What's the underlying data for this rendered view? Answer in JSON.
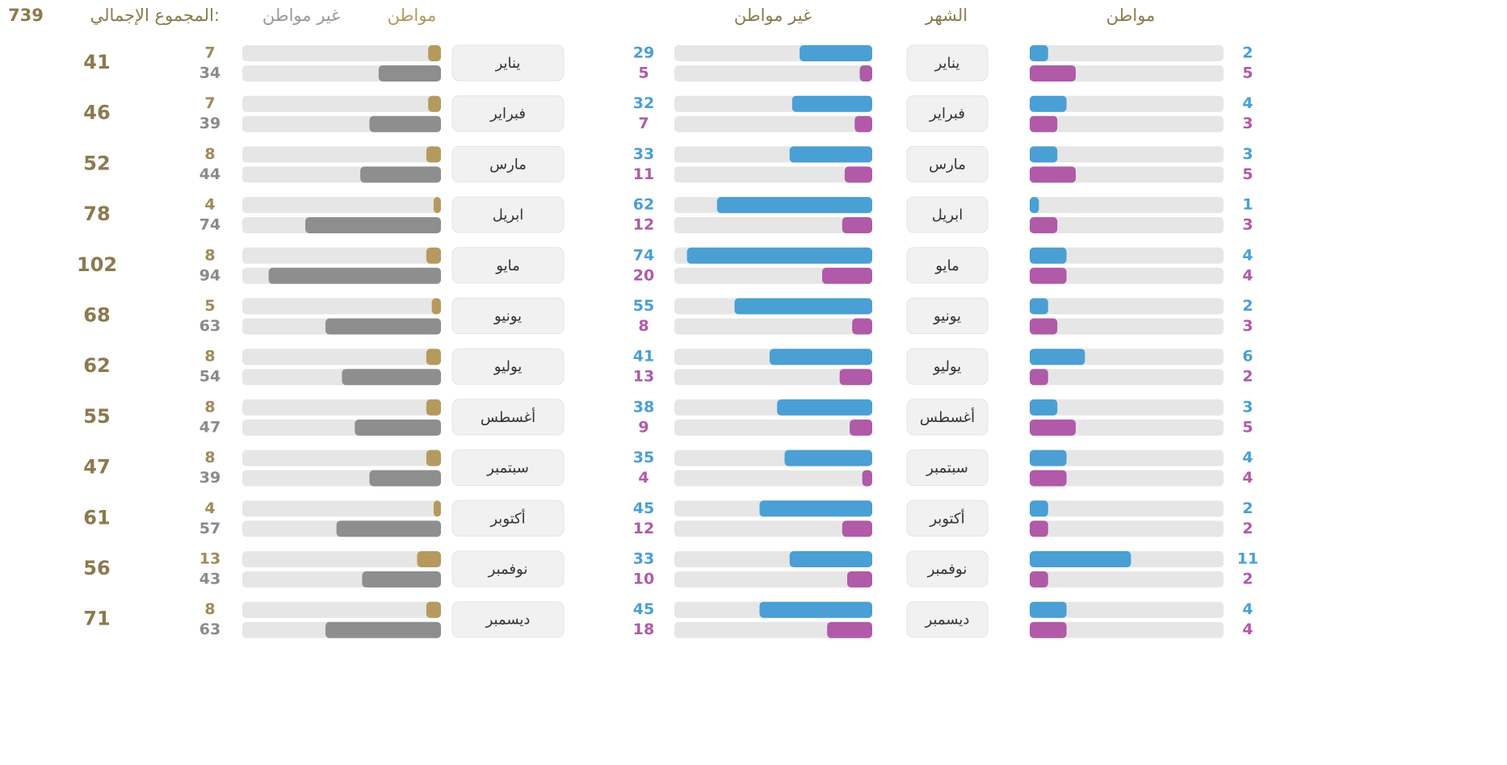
{
  "left_panel": {
    "headers": {
      "citizen": "مواطن",
      "month": "الشهر",
      "non_citizen": "غير مواطن"
    },
    "months": [
      "يناير",
      "فبراير",
      "مارس",
      "ابريل",
      "مايو",
      "يونيو",
      "يوليو",
      "أغسطس",
      "سبتمبر",
      "أكتوبر",
      "نوفمبر",
      "ديسمبر"
    ],
    "citizen_blue": [
      2,
      4,
      3,
      1,
      4,
      2,
      6,
      3,
      4,
      2,
      11,
      4
    ],
    "citizen_pink": [
      5,
      3,
      5,
      3,
      4,
      3,
      2,
      5,
      4,
      2,
      2,
      4
    ],
    "non_citizen_blue": [
      29,
      32,
      33,
      62,
      74,
      55,
      41,
      38,
      35,
      45,
      33,
      45
    ],
    "non_citizen_pink": [
      5,
      7,
      11,
      12,
      20,
      8,
      13,
      9,
      4,
      12,
      10,
      18
    ],
    "colors": {
      "blue": "#4a9fd4",
      "pink": "#b05aa8"
    }
  },
  "right_panel": {
    "headers": {
      "citizen": "مواطن",
      "non_citizen": "غير مواطن",
      "total": "المجموع الإجمالي:"
    },
    "grand_total": 739,
    "months": [
      "يناير",
      "فبراير",
      "مارس",
      "ابريل",
      "مايو",
      "يونيو",
      "يوليو",
      "أغسطس",
      "سبتمبر",
      "أكتوبر",
      "نوفمبر",
      "ديسمبر"
    ],
    "citizen": [
      7,
      7,
      8,
      4,
      8,
      5,
      8,
      8,
      8,
      4,
      13,
      8
    ],
    "non_citizen": [
      34,
      39,
      44,
      74,
      94,
      63,
      54,
      47,
      39,
      57,
      43,
      63
    ],
    "totals": [
      41,
      46,
      52,
      78,
      102,
      68,
      62,
      55,
      47,
      61,
      56,
      71
    ],
    "colors": {
      "citizen": "#b59a5e",
      "non_citizen": "#8e8e8e"
    }
  }
}
